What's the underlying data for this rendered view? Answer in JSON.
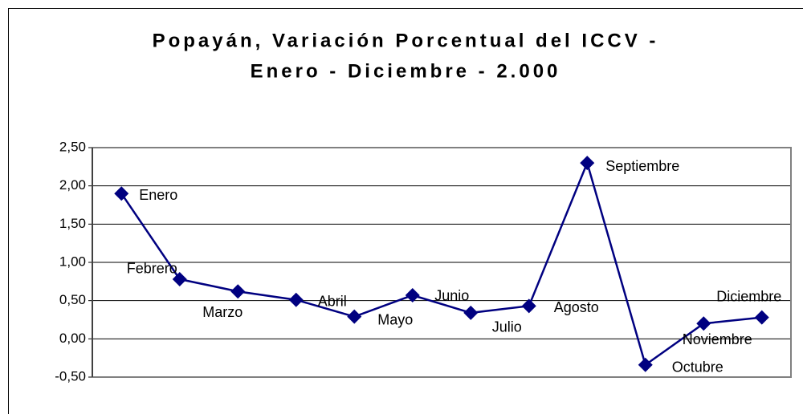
{
  "chart_data": {
    "type": "line",
    "title": [
      "Popayán, Variación Porcentual del ICCV -",
      "Enero - Diciembre - 2.000"
    ],
    "categories": [
      "Enero",
      "Febrero",
      "Marzo",
      "Abril",
      "Mayo",
      "Junio",
      "Julio",
      "Agosto",
      "Septiembre",
      "Octubre",
      "Noviembre",
      "Diciembre"
    ],
    "series": [
      {
        "color": "#000080",
        "values": [
          1.9,
          0.78,
          0.62,
          0.51,
          0.29,
          0.57,
          0.34,
          0.43,
          2.3,
          -0.34,
          0.2,
          0.28
        ]
      }
    ],
    "ylim": [
      -0.5,
      2.5
    ],
    "yticks": [
      {
        "value": -0.5,
        "label": "-0,50"
      },
      {
        "value": 0,
        "label": "0,00"
      },
      {
        "value": 0.5,
        "label": "0,50"
      },
      {
        "value": 1,
        "label": "1,00"
      },
      {
        "value": 1.5,
        "label": "1,50"
      },
      {
        "value": 2,
        "label": "2,00"
      },
      {
        "value": 2.5,
        "label": "2,50"
      }
    ],
    "grid": true
  }
}
